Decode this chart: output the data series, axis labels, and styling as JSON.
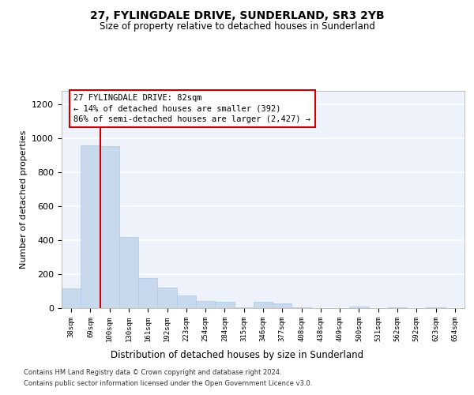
{
  "title": "27, FYLINGDALE DRIVE, SUNDERLAND, SR3 2YB",
  "subtitle": "Size of property relative to detached houses in Sunderland",
  "xlabel": "Distribution of detached houses by size in Sunderland",
  "ylabel": "Number of detached properties",
  "footer1": "Contains HM Land Registry data © Crown copyright and database right 2024.",
  "footer2": "Contains public sector information licensed under the Open Government Licence v3.0.",
  "annotation_line1": "27 FYLINGDALE DRIVE: 82sqm",
  "annotation_line2": "← 14% of detached houses are smaller (392)",
  "annotation_line3": "86% of semi-detached houses are larger (2,427) →",
  "bar_color": "#c8d9ee",
  "bar_edge_color": "#b0c8e4",
  "red_line_color": "#cc0000",
  "annotation_box_color": "#cc0000",
  "background_color": "#eef2fa",
  "grid_color": "#ffffff",
  "categories": [
    "38sqm",
    "69sqm",
    "100sqm",
    "130sqm",
    "161sqm",
    "192sqm",
    "223sqm",
    "254sqm",
    "284sqm",
    "315sqm",
    "346sqm",
    "377sqm",
    "408sqm",
    "438sqm",
    "469sqm",
    "500sqm",
    "531sqm",
    "562sqm",
    "592sqm",
    "623sqm",
    "654sqm"
  ],
  "values": [
    115,
    960,
    955,
    420,
    175,
    120,
    75,
    40,
    35,
    5,
    35,
    30,
    5,
    0,
    0,
    10,
    0,
    5,
    0,
    5,
    0
  ],
  "red_line_x": 1.5,
  "ylim": [
    0,
    1280
  ],
  "yticks": [
    0,
    200,
    400,
    600,
    800,
    1000,
    1200
  ]
}
